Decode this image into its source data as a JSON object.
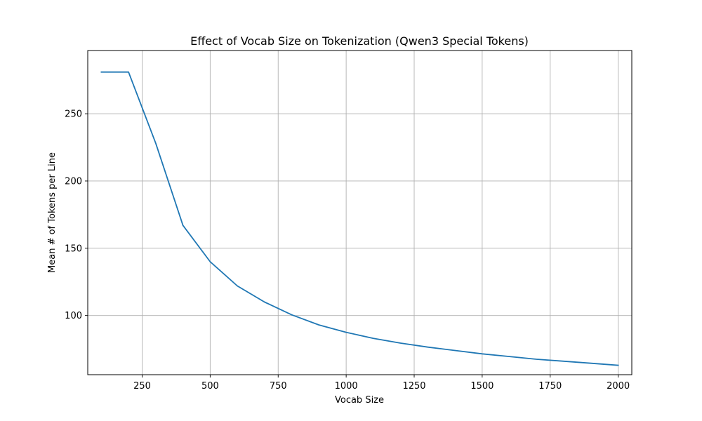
{
  "chart_data": {
    "type": "line",
    "title": "Effect of Vocab Size on Tokenization (Qwen3 Special Tokens)",
    "xlabel": "Vocab Size",
    "ylabel": "Mean # of Tokens per Line",
    "xlim": [
      50,
      2050
    ],
    "ylim": [
      56,
      297
    ],
    "xticks": [
      250,
      500,
      750,
      1000,
      1250,
      1500,
      1750,
      2000
    ],
    "yticks": [
      100,
      150,
      200,
      250
    ],
    "grid": true,
    "series": [
      {
        "color": "#1f77b4",
        "x": [
          100,
          200,
          300,
          400,
          500,
          600,
          700,
          800,
          900,
          1000,
          1100,
          1200,
          1300,
          1400,
          1500,
          1600,
          1700,
          1800,
          1900,
          2000
        ],
        "y": [
          281,
          281,
          228,
          167,
          140,
          122,
          110,
          100.5,
          93,
          87.5,
          83,
          79.5,
          76.5,
          74,
          71.5,
          69.5,
          67.5,
          66,
          64.5,
          63
        ]
      }
    ]
  }
}
